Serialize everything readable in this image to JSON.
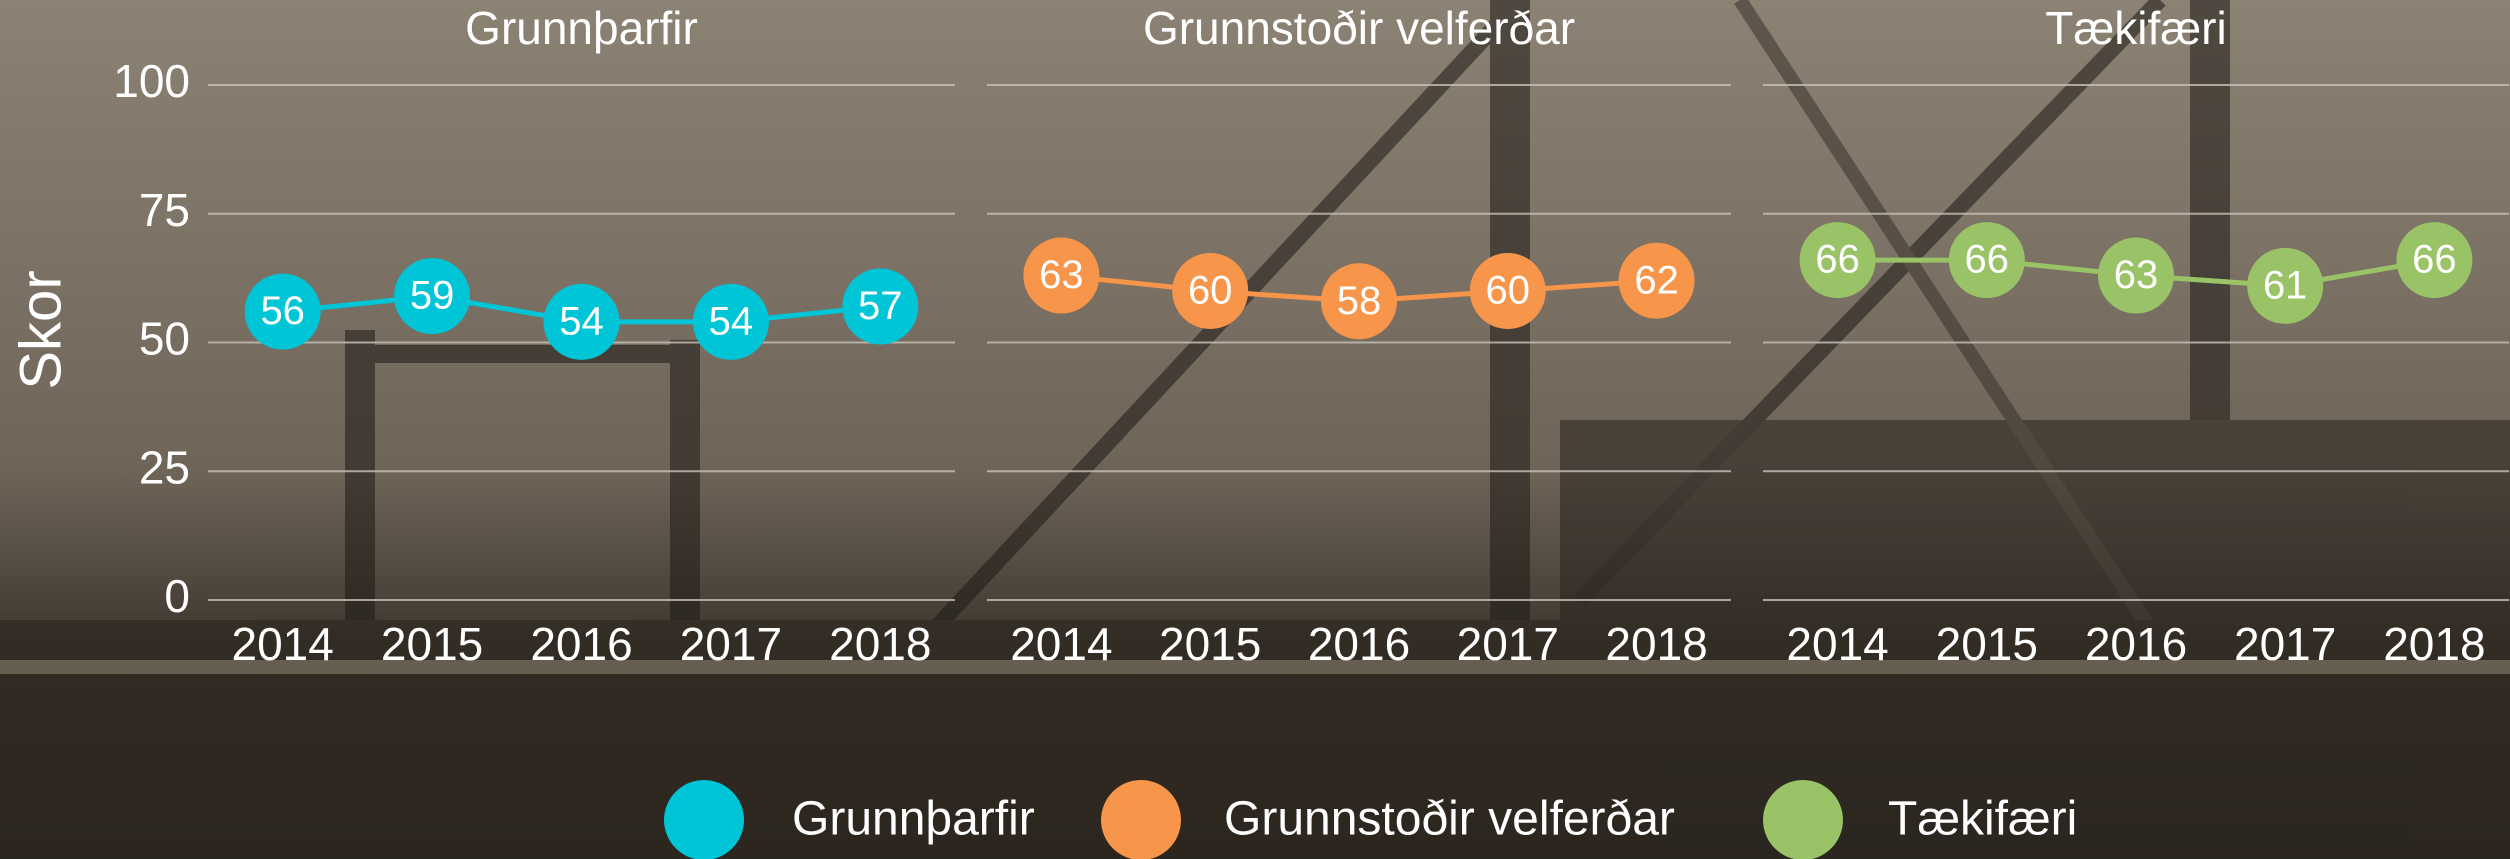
{
  "chart_data": [
    {
      "type": "line",
      "title": "Grunnþarfir",
      "ylabel": "Skor",
      "categories": [
        "2014",
        "2015",
        "2016",
        "2017",
        "2018"
      ],
      "series": [
        {
          "name": "Grunnþarfir",
          "color": "#00c5d6",
          "values": [
            56,
            59,
            54,
            54,
            57
          ]
        }
      ],
      "ylim": [
        0,
        100
      ],
      "yticks": [
        0,
        25,
        50,
        75,
        100
      ],
      "grid": true
    },
    {
      "type": "line",
      "title": "Grunnstoðir velferðar",
      "categories": [
        "2014",
        "2015",
        "2016",
        "2017",
        "2018"
      ],
      "series": [
        {
          "name": "Grunnstoðir velferðar",
          "color": "#f7954a",
          "values": [
            63,
            60,
            58,
            60,
            62
          ]
        }
      ],
      "ylim": [
        0,
        100
      ],
      "yticks": [
        0,
        25,
        50,
        75,
        100
      ],
      "grid": true
    },
    {
      "type": "line",
      "title": "Tækifæri",
      "categories": [
        "2014",
        "2015",
        "2016",
        "2017",
        "2018"
      ],
      "series": [
        {
          "name": "Tækifæri",
          "color": "#9ac266",
          "values": [
            66,
            66,
            63,
            61,
            66
          ]
        }
      ],
      "ylim": [
        0,
        100
      ],
      "yticks": [
        0,
        25,
        50,
        75,
        100
      ],
      "grid": true
    }
  ]
}
